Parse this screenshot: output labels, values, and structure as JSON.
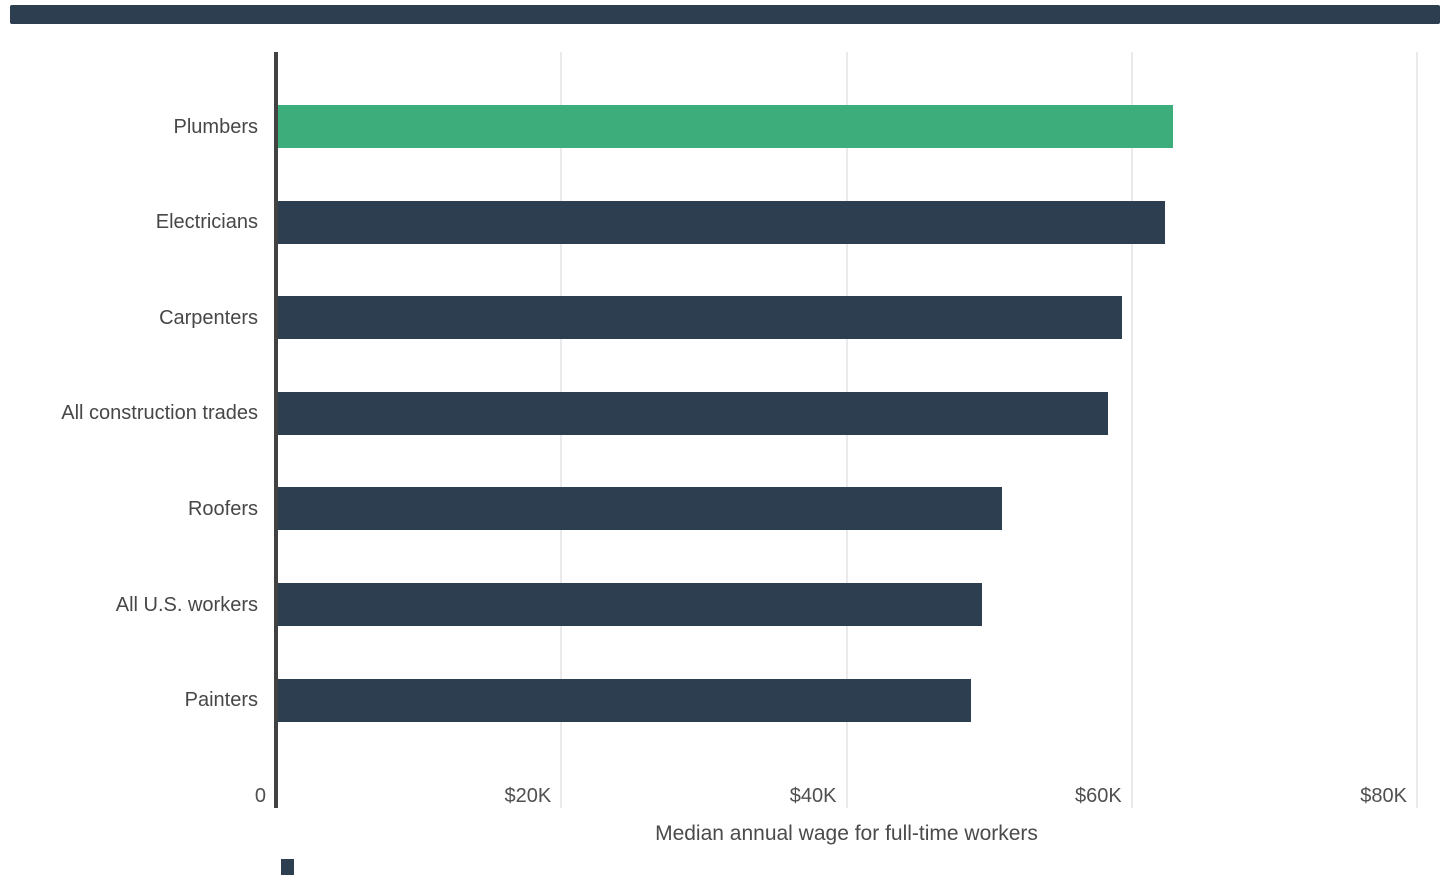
{
  "page": {
    "background": "#ffffff",
    "top_rule_color": "#2d3e50"
  },
  "chart_data": {
    "type": "bar",
    "orientation": "horizontal",
    "title": "",
    "xlabel": "Median annual wage for full-time workers",
    "ylabel": "",
    "categories": [
      "Plumbers",
      "Electricians",
      "Carpenters",
      "All construction trades",
      "Roofers",
      "All U.S. workers",
      "Painters"
    ],
    "values": [
      62900,
      62300,
      59300,
      58300,
      50900,
      49500,
      48700
    ],
    "highlight_index": 0,
    "highlight_color": "#3dae7b",
    "bar_color": "#2d3e50",
    "axis_line_color": "#424242",
    "gridline_color": "#eaeaea",
    "label_color": "#474747",
    "xlim": [
      0,
      80000
    ],
    "x_tick_values": [
      0,
      20000,
      40000,
      60000,
      80000
    ],
    "x_tick_labels": [
      "0",
      "$20K",
      "$40K",
      "$60K",
      "$80K"
    ],
    "grid": true,
    "legend": false
  }
}
